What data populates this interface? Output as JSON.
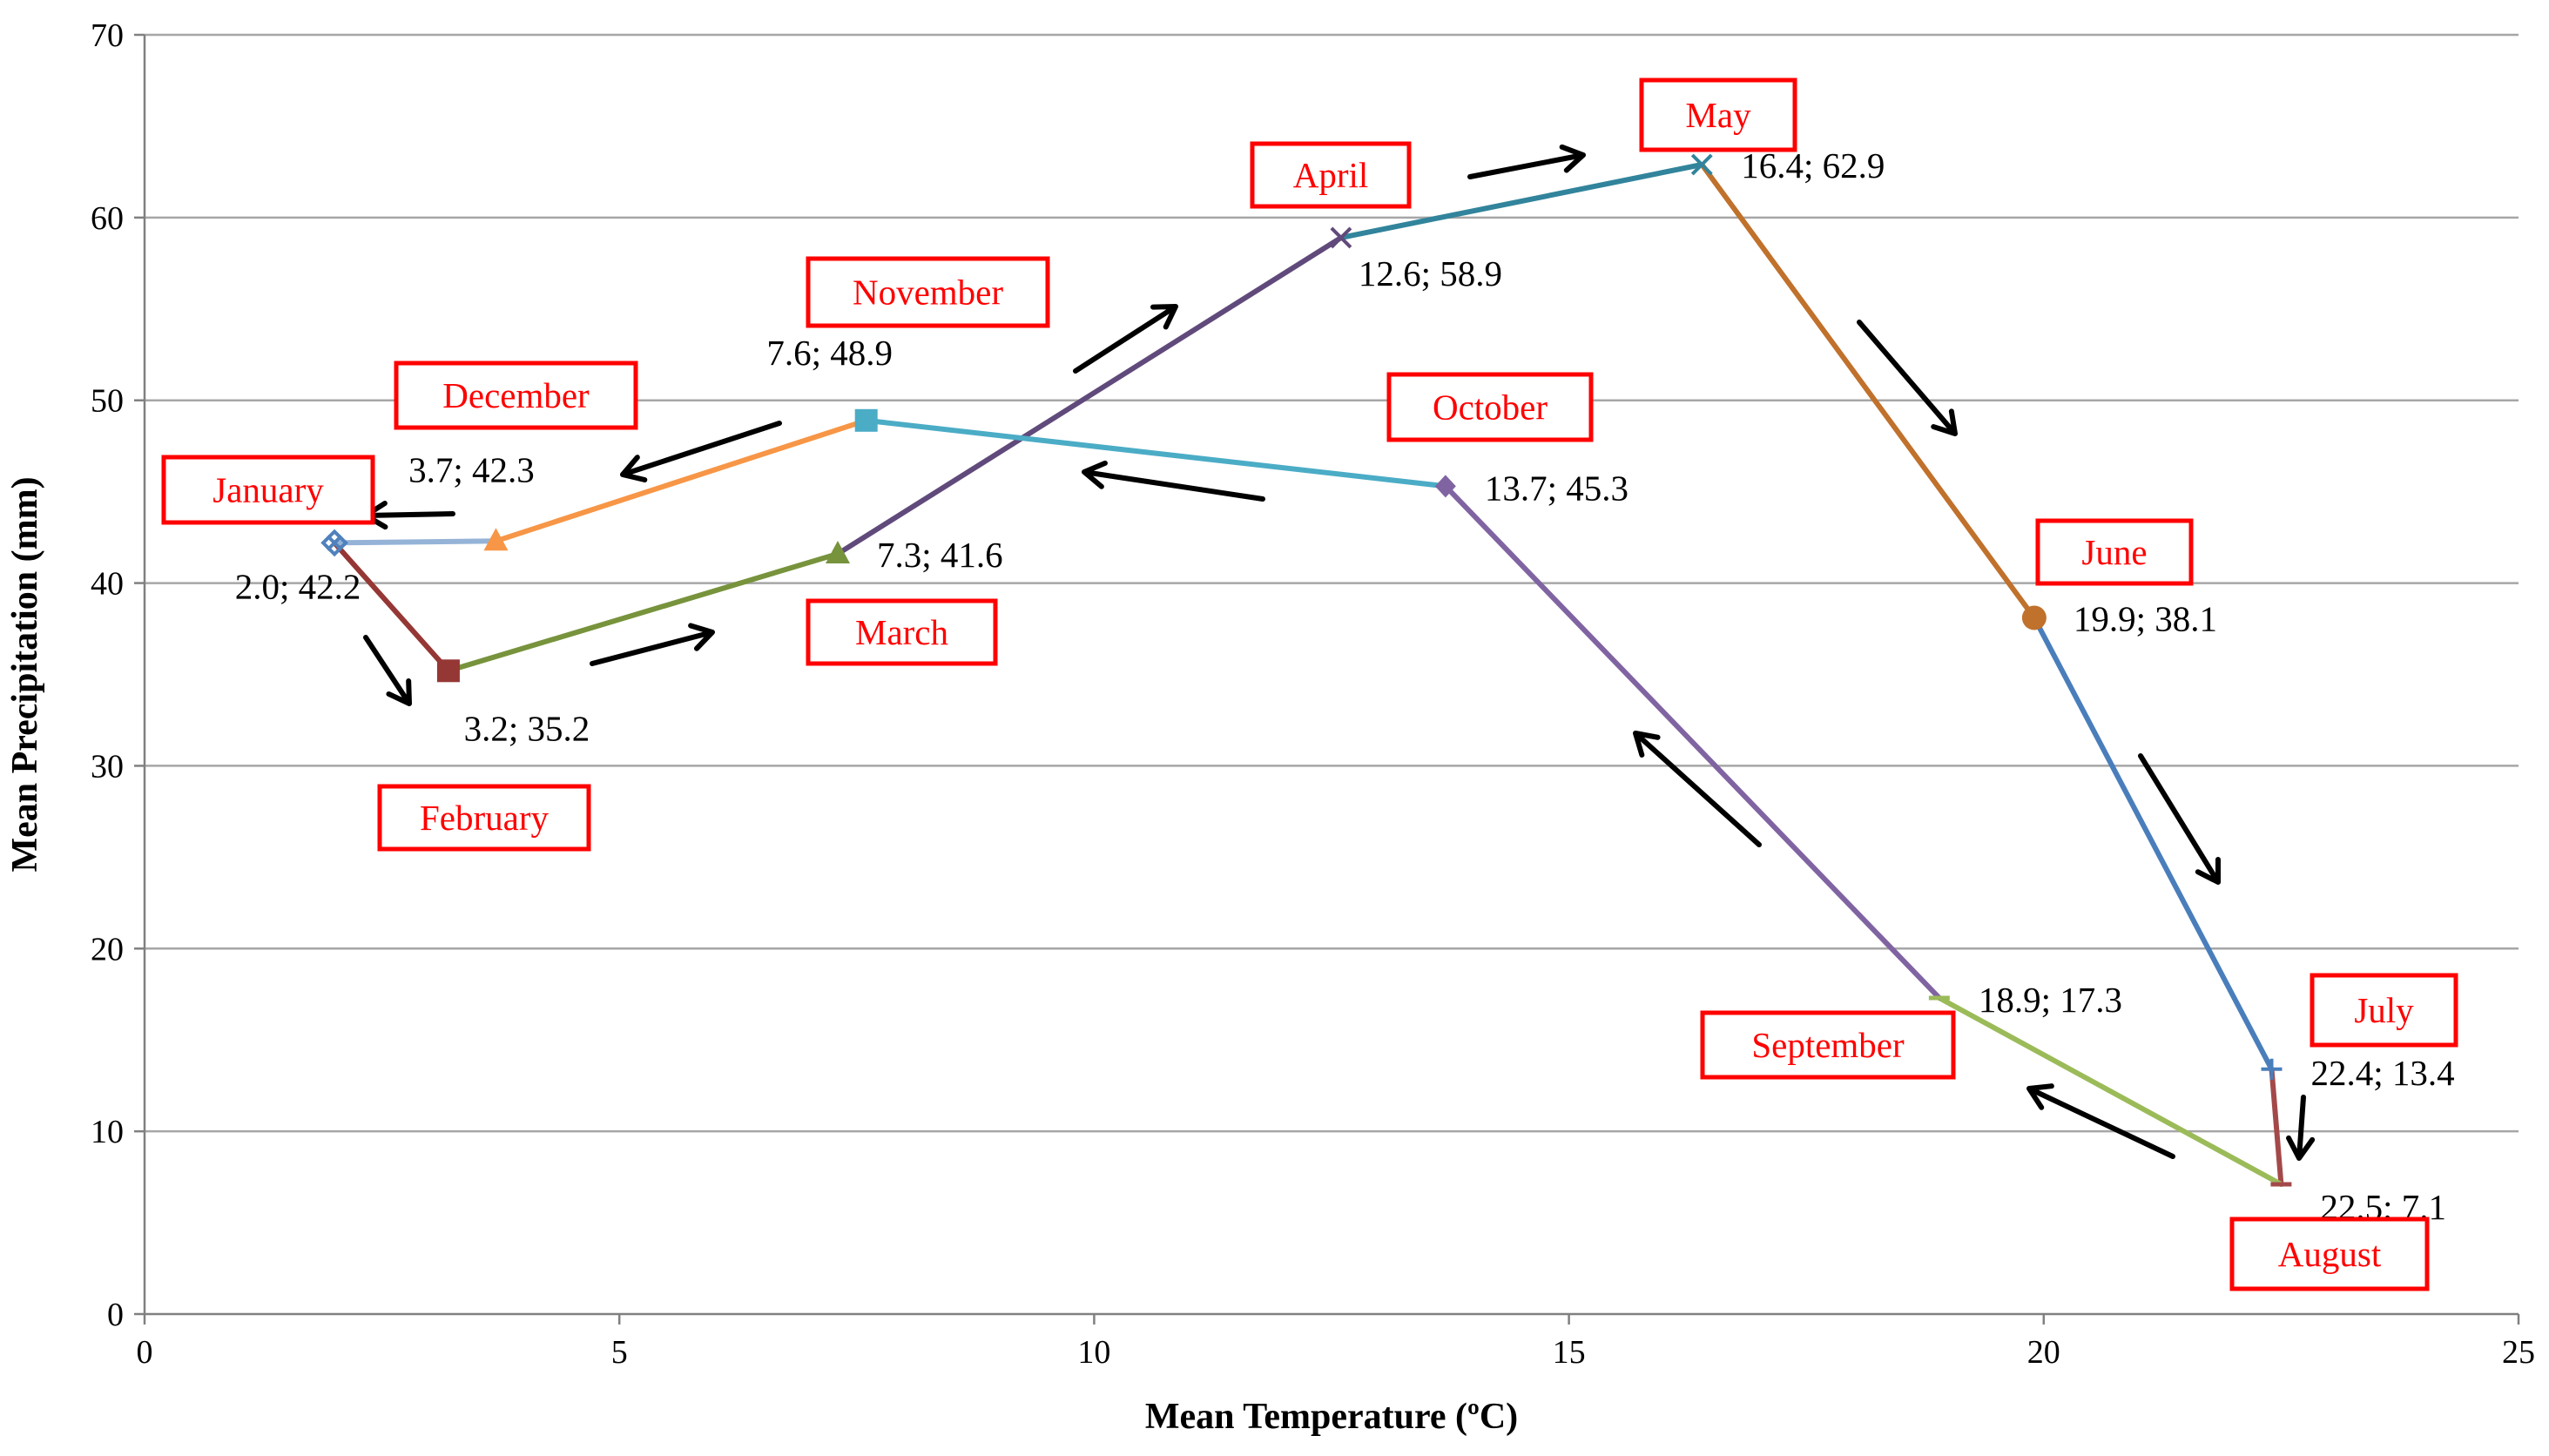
{
  "chart_data": {
    "type": "line",
    "title": "",
    "xlabel": "Mean Temperature (ºC)",
    "ylabel": "Mean Precipitation (mm)",
    "xlim": [
      0,
      25
    ],
    "ylim": [
      0,
      70
    ],
    "xticks": [
      0,
      5,
      10,
      15,
      20,
      25
    ],
    "yticks": [
      0,
      10,
      20,
      30,
      40,
      50,
      60,
      70
    ],
    "grid": true,
    "legend": "none",
    "points": [
      {
        "month": "January",
        "x": 2.0,
        "y": 42.2,
        "label": "2.0; 42.2",
        "marker": "x-diamond"
      },
      {
        "month": "February",
        "x": 3.2,
        "y": 35.2,
        "label": "3.2; 35.2",
        "marker": "square"
      },
      {
        "month": "March",
        "x": 7.3,
        "y": 41.6,
        "label": "7.3; 41.6",
        "marker": "triangle"
      },
      {
        "month": "April",
        "x": 12.6,
        "y": 58.9,
        "label": "12.6; 58.9",
        "marker": "x"
      },
      {
        "month": "May",
        "x": 16.4,
        "y": 62.9,
        "label": "16.4; 62.9",
        "marker": "x"
      },
      {
        "month": "June",
        "x": 19.9,
        "y": 38.1,
        "label": "19.9; 38.1",
        "marker": "circle"
      },
      {
        "month": "July",
        "x": 22.4,
        "y": 13.4,
        "label": "22.4; 13.4",
        "marker": "plus"
      },
      {
        "month": "August",
        "x": 22.5,
        "y": 7.1,
        "label": "22.5; 7.1",
        "marker": "dash"
      },
      {
        "month": "September",
        "x": 18.9,
        "y": 17.3,
        "label": "18.9; 17.3",
        "marker": "dash"
      },
      {
        "month": "October",
        "x": 13.7,
        "y": 45.3,
        "label": "13.7; 45.3",
        "marker": "diamond"
      },
      {
        "month": "November",
        "x": 7.6,
        "y": 48.9,
        "label": "7.6; 48.9",
        "marker": "square"
      },
      {
        "month": "December",
        "x": 3.7,
        "y": 42.3,
        "label": "3.7; 42.3",
        "marker": "triangle"
      }
    ],
    "segments": [
      {
        "from": "January",
        "to": "February",
        "color": "#953735"
      },
      {
        "from": "February",
        "to": "March",
        "color": "#77933c"
      },
      {
        "from": "March",
        "to": "April",
        "color": "#604a7b"
      },
      {
        "from": "April",
        "to": "May",
        "color": "#31849b"
      },
      {
        "from": "May",
        "to": "June",
        "color": "#c0712c"
      },
      {
        "from": "June",
        "to": "July",
        "color": "#4a7ebb"
      },
      {
        "from": "July",
        "to": "August",
        "color": "#a4494a"
      },
      {
        "from": "August",
        "to": "September",
        "color": "#9bbb59"
      },
      {
        "from": "September",
        "to": "October",
        "color": "#8064a2"
      },
      {
        "from": "October",
        "to": "November",
        "color": "#4bacc6"
      },
      {
        "from": "November",
        "to": "December",
        "color": "#f79646"
      },
      {
        "from": "December",
        "to": "January",
        "color": "#95b3d7"
      }
    ],
    "marker_colors": {
      "January": "#4f81bd",
      "February": "#953735",
      "March": "#77933c",
      "April": "#604a7b",
      "May": "#31849b",
      "June": "#c0712c",
      "July": "#4a7ebb",
      "August": "#a4494a",
      "September": "#9bbb59",
      "October": "#8064a2",
      "November": "#4bacc6",
      "December": "#f79646"
    },
    "month_label_color": "#ff0000"
  }
}
